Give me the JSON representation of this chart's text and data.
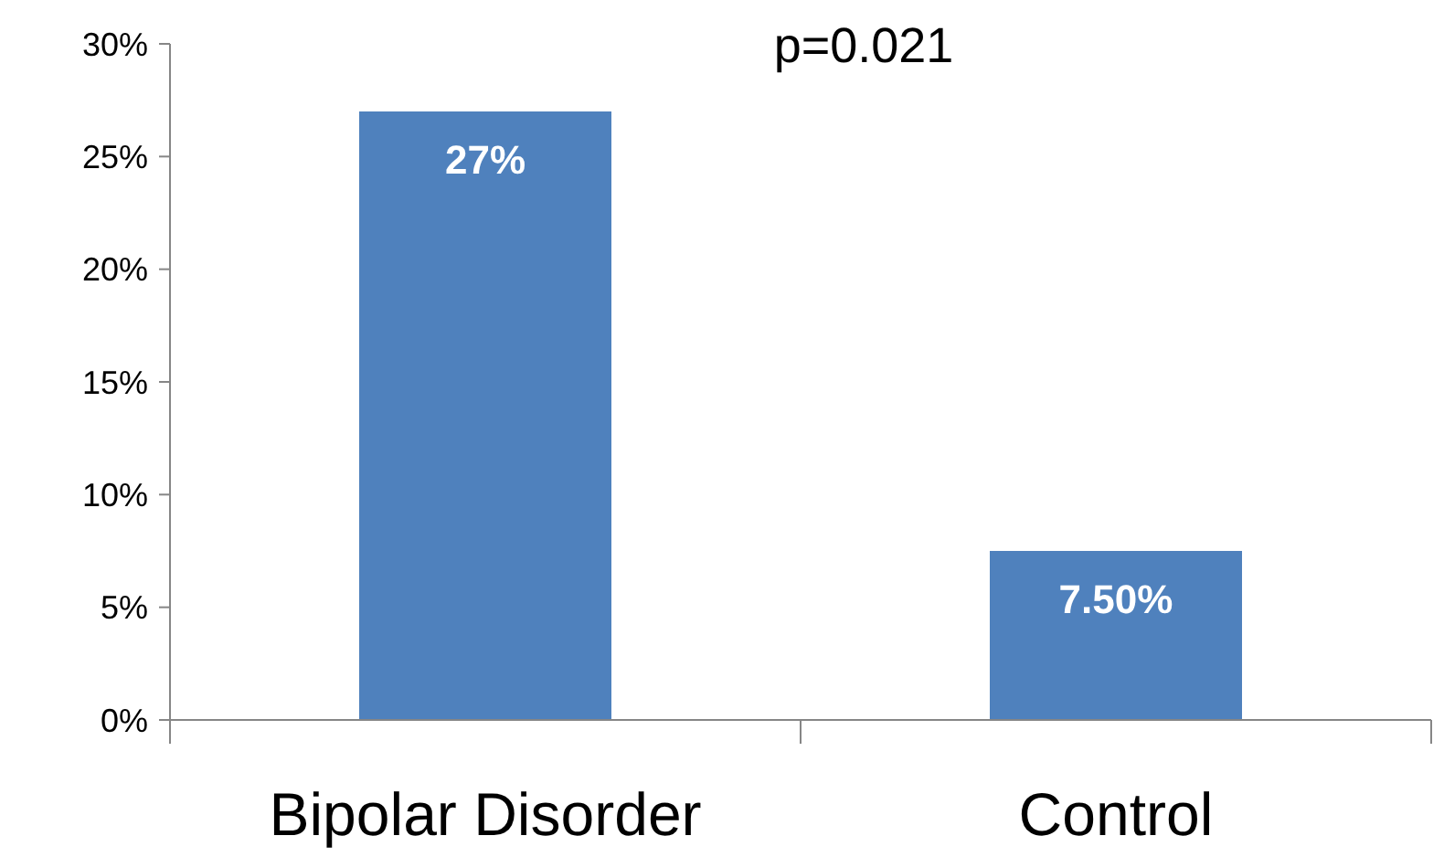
{
  "chart_data": {
    "type": "bar",
    "categories": [
      "Bipolar Disorder",
      "Control"
    ],
    "values": [
      27,
      7.5
    ],
    "color": "#4f81bd",
    "value_labels": [
      "27%",
      "7.50%"
    ],
    "ylim": [
      0,
      30
    ],
    "yticks": [
      {
        "value": 0,
        "label": "0%"
      },
      {
        "value": 5,
        "label": "5%"
      },
      {
        "value": 10,
        "label": "10%"
      },
      {
        "value": 15,
        "label": "15%"
      },
      {
        "value": 20,
        "label": "20%"
      },
      {
        "value": 25,
        "label": "25%"
      },
      {
        "value": 30,
        "label": "30%"
      }
    ],
    "annotations": [
      "p=0.021"
    ],
    "grid": false
  }
}
